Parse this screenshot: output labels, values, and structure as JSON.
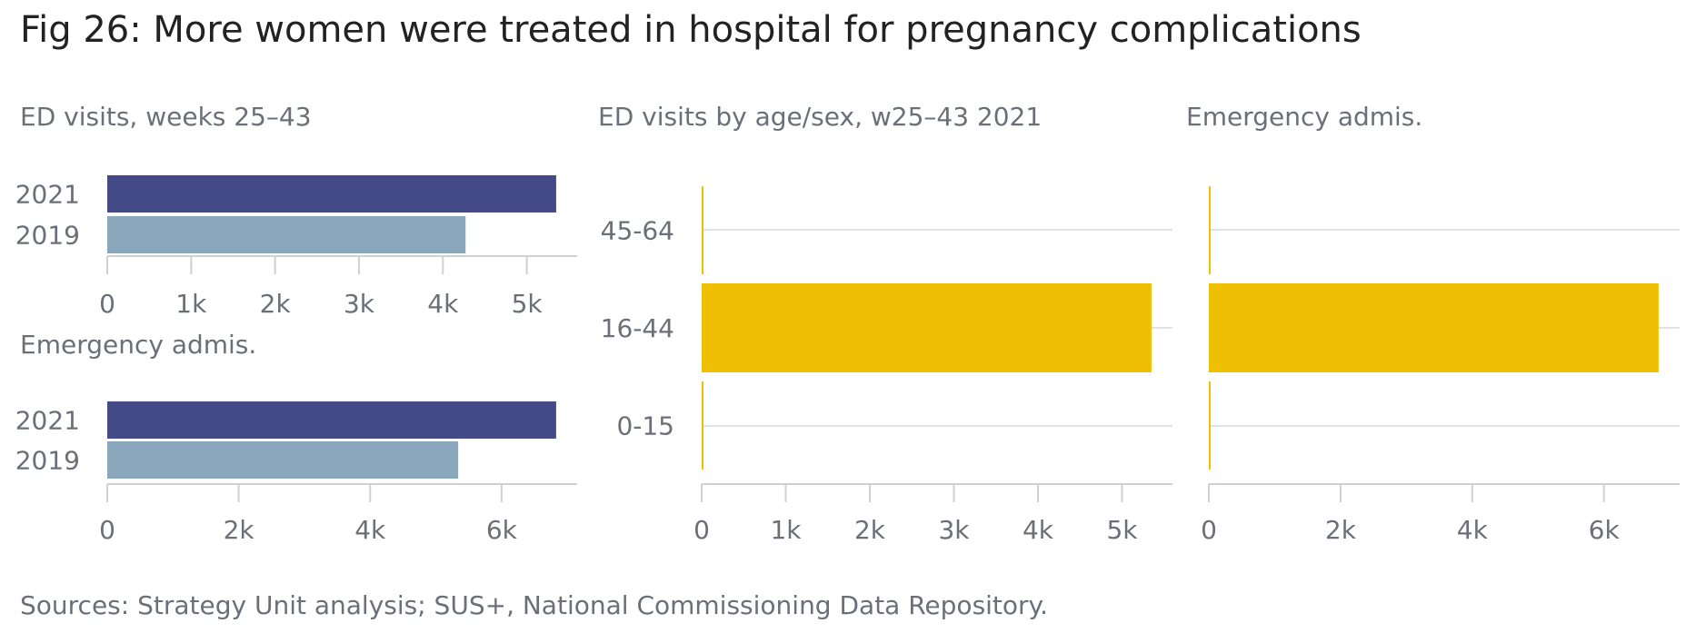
{
  "title": "Fig 26: More women were treated in hospital for pregnancy complications",
  "source": "Sources: Strategy Unit analysis; SUS+, National Commissioning Data Repository.",
  "colors": {
    "y2021": "#434a87",
    "y2019": "#8aa7bb",
    "yellow": "#efbf03",
    "axis": "#d0d0d0",
    "grid": "#d9d9d9"
  },
  "chart_data": [
    {
      "type": "bar",
      "orientation": "horizontal",
      "title": "ED visits, weeks 25–43",
      "categories": [
        "2021",
        "2019"
      ],
      "values": [
        5350,
        4270
      ],
      "xlim": [
        0,
        5600
      ],
      "xticks": [
        0,
        1000,
        2000,
        3000,
        4000,
        5000
      ],
      "xtick_labels": [
        "0",
        "1k",
        "2k",
        "3k",
        "4k",
        "5k"
      ],
      "grid": false
    },
    {
      "type": "bar",
      "orientation": "horizontal",
      "title": "Emergency admis.",
      "categories": [
        "2021",
        "2019"
      ],
      "values": [
        6830,
        5340
      ],
      "xlim": [
        0,
        7150
      ],
      "xticks": [
        0,
        2000,
        4000,
        6000
      ],
      "xtick_labels": [
        "0",
        "2k",
        "4k",
        "6k"
      ],
      "grid": false
    },
    {
      "type": "bar",
      "orientation": "horizontal",
      "title": "ED visits by age/sex, w25–43 2021",
      "categories": [
        "45-64",
        "16-44",
        "0-15"
      ],
      "values": [
        5,
        5350,
        5
      ],
      "xlim": [
        0,
        5600
      ],
      "xticks": [
        0,
        1000,
        2000,
        3000,
        4000,
        5000
      ],
      "xtick_labels": [
        "0",
        "1k",
        "2k",
        "3k",
        "4k",
        "5k"
      ],
      "grid": true
    },
    {
      "type": "bar",
      "orientation": "horizontal",
      "title": "Emergency admis.",
      "categories": [
        "45-64",
        "16-44",
        "0-15"
      ],
      "values": [
        8,
        6830,
        6
      ],
      "xlim": [
        0,
        7150
      ],
      "xticks": [
        0,
        2000,
        4000,
        6000
      ],
      "xtick_labels": [
        "0",
        "2k",
        "4k",
        "6k"
      ],
      "grid": true
    }
  ]
}
